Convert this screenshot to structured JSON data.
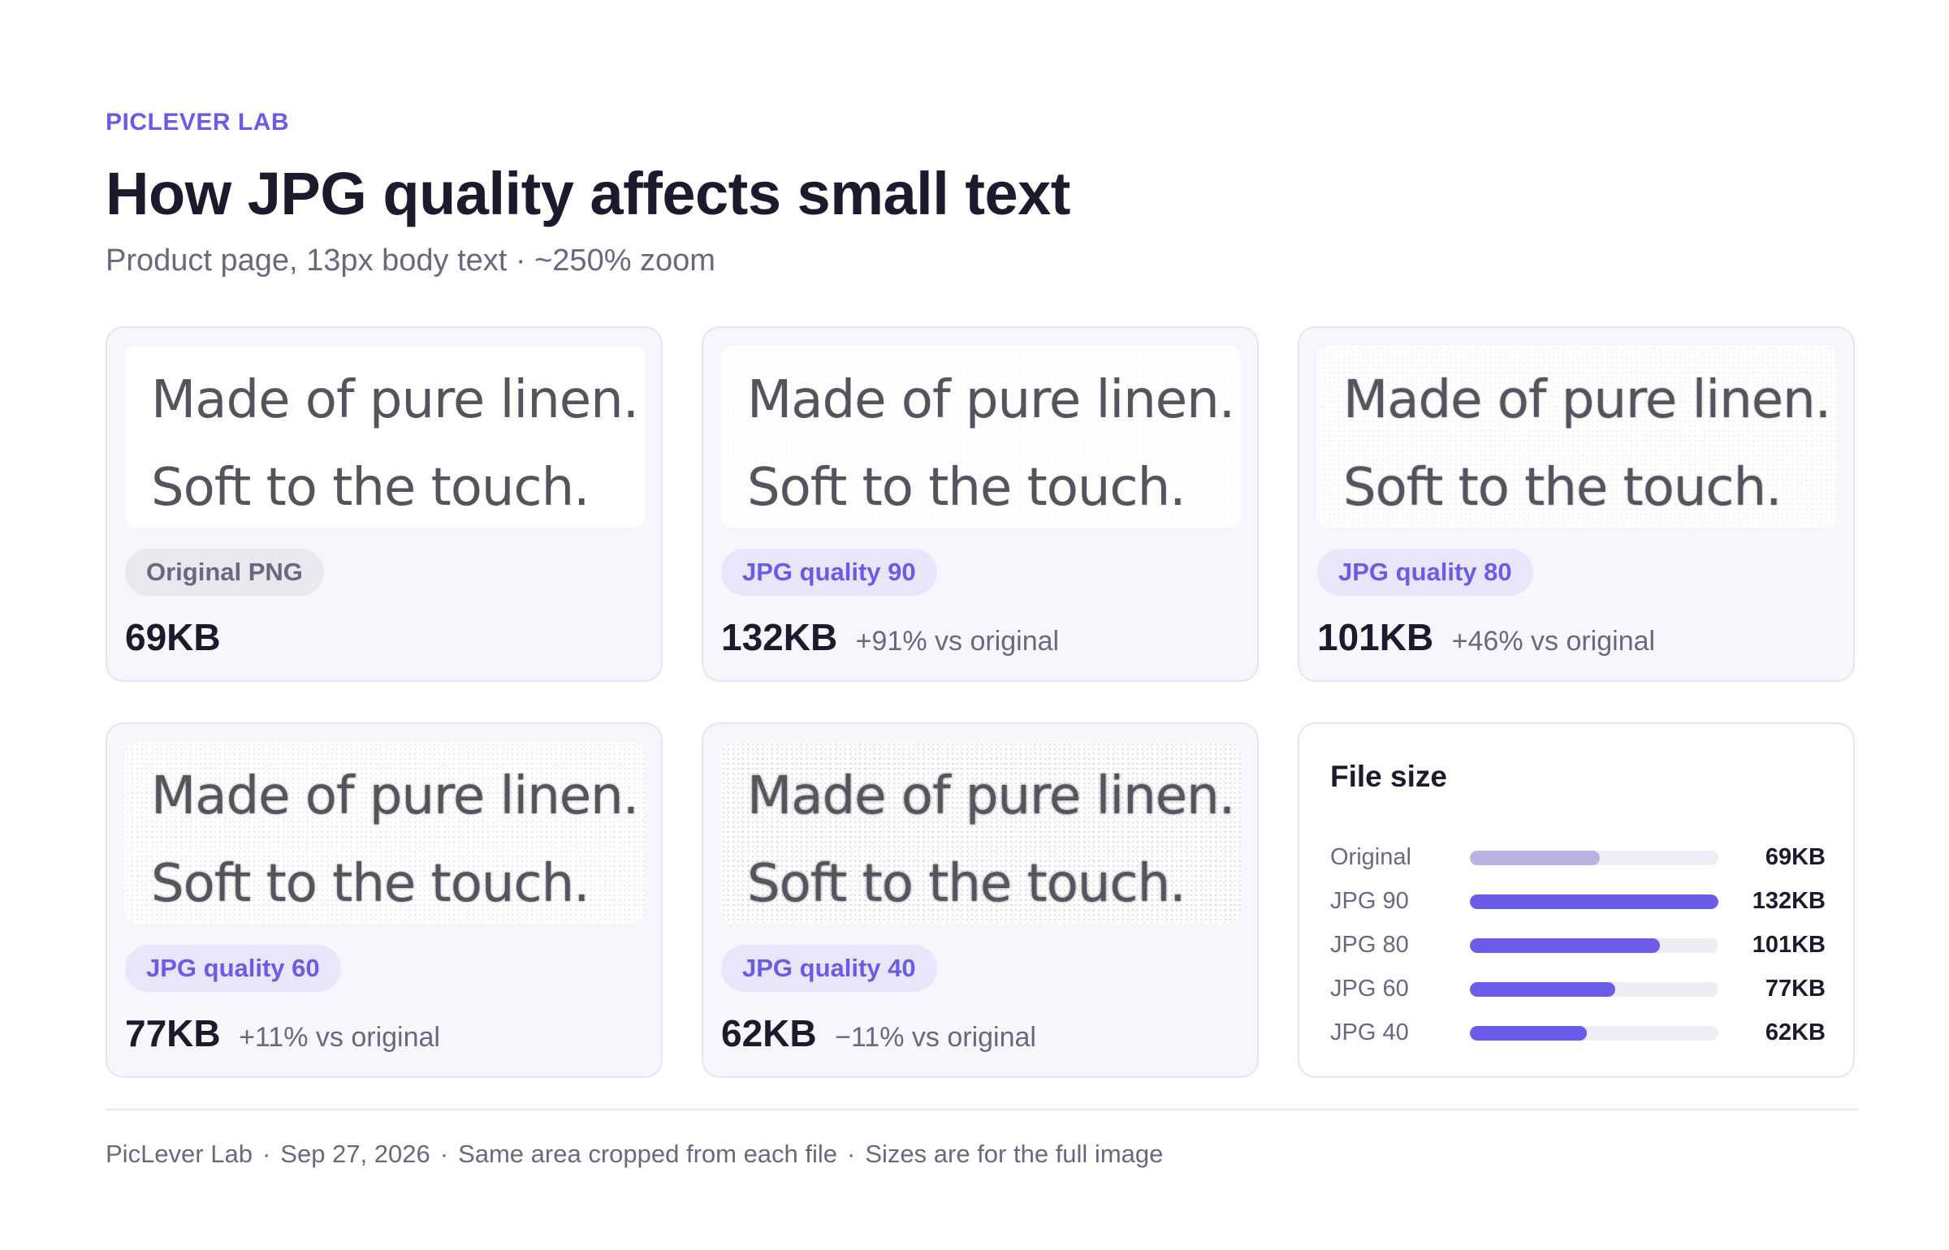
{
  "header": {
    "eyebrow": "PICLEVER LAB",
    "title": "How JPG quality affects small text",
    "subtitle": "Product page, 13px body text · ~250% zoom"
  },
  "sample_text": {
    "line1": "Made of pure linen.",
    "line2": "Soft to the touch."
  },
  "cards": [
    {
      "label": "Original PNG",
      "size": "69KB",
      "delta": ""
    },
    {
      "label": "JPG quality 90",
      "size": "132KB",
      "delta": "+91% vs original"
    },
    {
      "label": "JPG quality 80",
      "size": "101KB",
      "delta": "+46% vs original"
    },
    {
      "label": "JPG quality 60",
      "size": "77KB",
      "delta": "+11% vs original"
    },
    {
      "label": "JPG quality 40",
      "size": "62KB",
      "delta": "−11% vs original"
    }
  ],
  "chart_data": {
    "type": "bar",
    "title": "File size",
    "categories": [
      "Original",
      "JPG 90",
      "JPG 80",
      "JPG 60",
      "JPG 40"
    ],
    "values": [
      69,
      132,
      101,
      77,
      62
    ],
    "value_labels": [
      "69KB",
      "132KB",
      "101KB",
      "77KB",
      "62KB"
    ],
    "unit": "KB",
    "xlim": [
      0,
      132
    ],
    "colors": {
      "original": "#b8b2e2",
      "jpg": "#6b5ce7",
      "track": "#eeedf5"
    }
  },
  "footer": {
    "source": "PicLever Lab",
    "date": "Sep 27, 2026",
    "note1": "Same area cropped from each file",
    "note2": "Sizes are for the full image",
    "separator": "·"
  },
  "colors": {
    "accent": "#6b5ce7",
    "text": "#1c1b2e",
    "muted": "#6a6880"
  }
}
